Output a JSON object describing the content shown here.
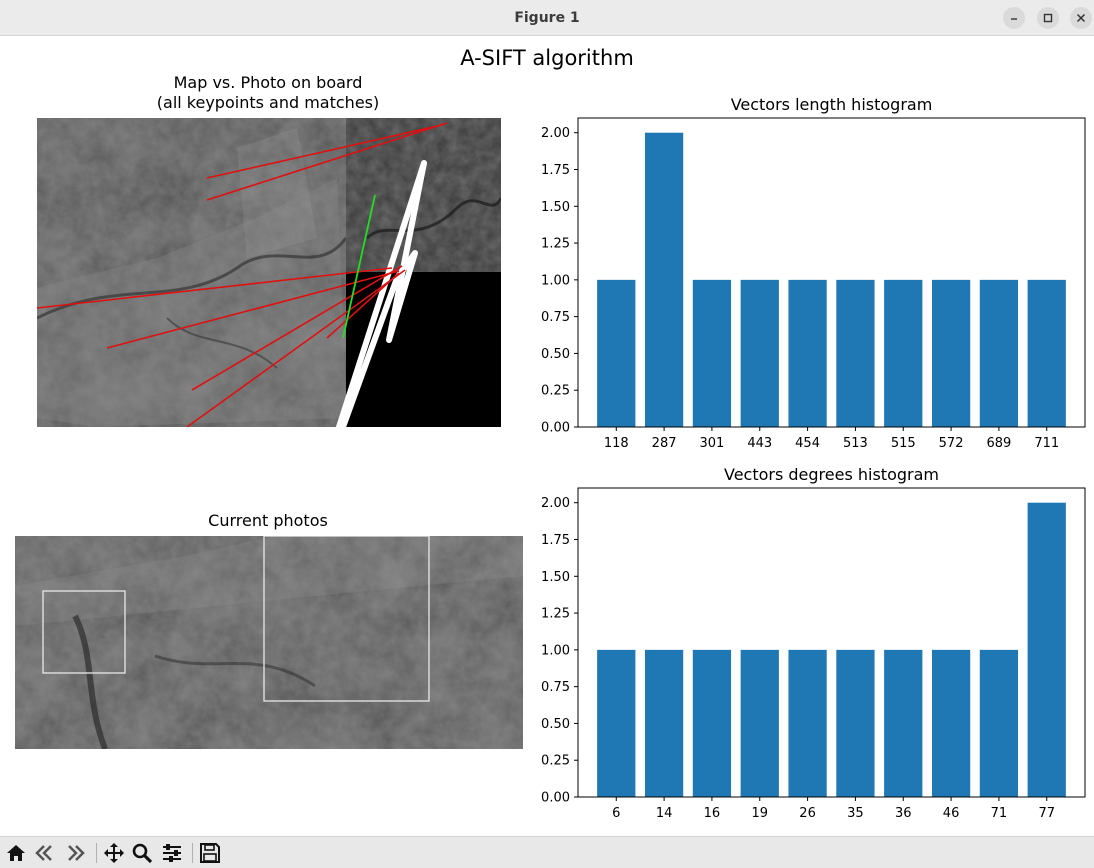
{
  "window": {
    "title": "Figure 1"
  },
  "figure": {
    "suptitle": "A-SIFT algorithm"
  },
  "map_panel": {
    "title_line1": "Map vs. Photo on board",
    "title_line2": "(all keypoints and matches)"
  },
  "photos_panel": {
    "title": "Current photos"
  },
  "colors": {
    "bar": "#1f77b4",
    "match_line": "#e01010",
    "good_match": "#22dd22",
    "outline": "#ffffff"
  },
  "chart_data": [
    {
      "type": "bar",
      "title": "Vectors length histogram",
      "categories": [
        "118",
        "287",
        "301",
        "443",
        "454",
        "513",
        "515",
        "572",
        "689",
        "711"
      ],
      "values": [
        1,
        2,
        1,
        1,
        1,
        1,
        1,
        1,
        1,
        1
      ],
      "ylim": [
        0,
        2.1
      ],
      "yticks": [
        "0.00",
        "0.25",
        "0.50",
        "0.75",
        "1.00",
        "1.25",
        "1.50",
        "1.75",
        "2.00"
      ]
    },
    {
      "type": "bar",
      "title": "Vectors degrees histogram",
      "categories": [
        "6",
        "14",
        "16",
        "19",
        "26",
        "35",
        "36",
        "46",
        "71",
        "77"
      ],
      "values": [
        1,
        1,
        1,
        1,
        1,
        1,
        1,
        1,
        1,
        2
      ],
      "ylim": [
        0,
        2.1
      ],
      "yticks": [
        "0.00",
        "0.25",
        "0.50",
        "0.75",
        "1.00",
        "1.25",
        "1.50",
        "1.75",
        "2.00"
      ]
    }
  ],
  "toolbar": {
    "items": [
      "home-icon",
      "back-icon",
      "forward-icon",
      "pan-icon",
      "zoom-icon",
      "configure-icon",
      "save-icon"
    ]
  }
}
